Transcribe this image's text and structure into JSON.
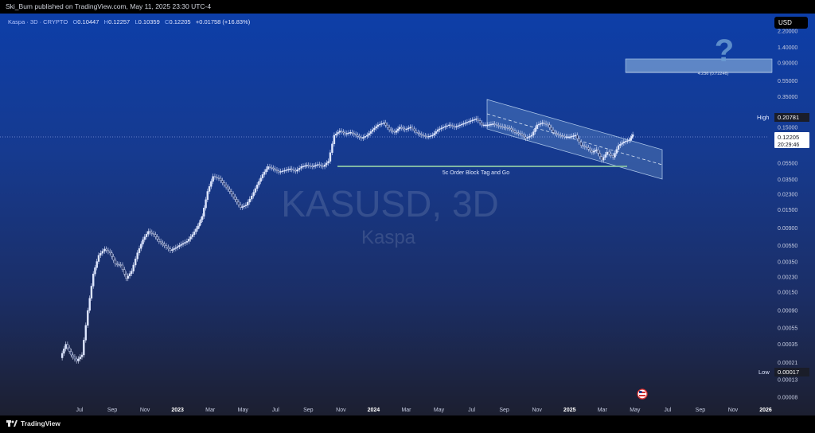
{
  "header": {
    "published_by": "Ski_Bum published on TradingView.com, May 11, 2025 23:30 UTC-4"
  },
  "legend": {
    "symbol": "Kaspa · 3D · CRYPTO",
    "open_key": "O",
    "open": "0.10447",
    "high_key": "H",
    "high": "0.12257",
    "low_key": "L",
    "low": "0.10359",
    "close_key": "C",
    "close": "0.12205",
    "change": "+0.01758 (+16.83%)"
  },
  "currency_button": "USD",
  "watermark": {
    "ticker": "KASUSD, 3D",
    "name": "Kaspa"
  },
  "price_labels": {
    "high_tag": "High",
    "high_value": "0.20781",
    "low_tag": "Low",
    "low_value": "0.00017",
    "current_price": "0.12205",
    "countdown": "20:29:46"
  },
  "annotations": {
    "order_block": "5c Order Block Tag and Go",
    "fib_target": "4.236 (0.72246)",
    "question_mark": "?"
  },
  "footer": {
    "brand": "TradingView"
  },
  "colors": {
    "candle": "#dfe7ff",
    "channel_fill": "#7aa7d8",
    "price_line": "#b8c6ff",
    "label_bg": "#ffffff",
    "bottom_bar": "#000000"
  },
  "chart_data": {
    "type": "candlestick",
    "title": "KASUSD, 3D",
    "y_scale": "log",
    "y_ticks": [
      "2.20000",
      "1.40000",
      "0.90000",
      "0.55000",
      "0.35000",
      "0.20781",
      "0.15000",
      "0.09500",
      "0.05500",
      "0.03500",
      "0.02300",
      "0.01500",
      "0.00900",
      "0.00550",
      "0.00350",
      "0.00230",
      "0.00150",
      "0.00090",
      "0.00055",
      "0.00035",
      "0.00021",
      "0.00017",
      "0.00013",
      "0.00008"
    ],
    "x_ticks": [
      "Jul",
      "Sep",
      "Nov",
      "2023",
      "Mar",
      "May",
      "Jul",
      "Sep",
      "Nov",
      "2024",
      "Mar",
      "May",
      "Jul",
      "Sep",
      "Nov",
      "2025",
      "Mar",
      "May",
      "Jul",
      "Sep",
      "Nov",
      "2026"
    ],
    "bold_x_ticks": [
      "2023",
      "2024",
      "2025",
      "2026"
    ],
    "x_range": [
      "2022-06-15",
      "2026-01-01"
    ],
    "ylim": [
      8e-05,
      2.2
    ],
    "series": [
      {
        "name": "KASUSD",
        "points": [
          [
            "2022-06-15",
            0.00024
          ],
          [
            "2022-06-25",
            0.00035
          ],
          [
            "2022-07-05",
            0.00026
          ],
          [
            "2022-07-15",
            0.00022
          ],
          [
            "2022-07-25",
            0.00026
          ],
          [
            "2022-08-05",
            0.0009
          ],
          [
            "2022-08-15",
            0.0025
          ],
          [
            "2022-08-25",
            0.0042
          ],
          [
            "2022-09-05",
            0.005
          ],
          [
            "2022-09-15",
            0.0045
          ],
          [
            "2022-09-25",
            0.0033
          ],
          [
            "2022-10-05",
            0.0032
          ],
          [
            "2022-10-15",
            0.0022
          ],
          [
            "2022-10-25",
            0.0027
          ],
          [
            "2022-11-05",
            0.0045
          ],
          [
            "2022-11-15",
            0.0065
          ],
          [
            "2022-11-25",
            0.0082
          ],
          [
            "2022-12-05",
            0.0075
          ],
          [
            "2022-12-15",
            0.0062
          ],
          [
            "2022-12-25",
            0.0055
          ],
          [
            "2023-01-05",
            0.0048
          ],
          [
            "2023-01-15",
            0.0052
          ],
          [
            "2023-01-25",
            0.0057
          ],
          [
            "2023-02-05",
            0.0062
          ],
          [
            "2023-02-15",
            0.0075
          ],
          [
            "2023-02-25",
            0.0095
          ],
          [
            "2023-03-05",
            0.0125
          ],
          [
            "2023-03-15",
            0.025
          ],
          [
            "2023-03-25",
            0.038
          ],
          [
            "2023-04-05",
            0.036
          ],
          [
            "2023-04-15",
            0.03
          ],
          [
            "2023-04-25",
            0.025
          ],
          [
            "2023-05-05",
            0.02
          ],
          [
            "2023-05-15",
            0.016
          ],
          [
            "2023-05-25",
            0.017
          ],
          [
            "2023-06-05",
            0.022
          ],
          [
            "2023-06-15",
            0.03
          ],
          [
            "2023-06-25",
            0.04
          ],
          [
            "2023-07-05",
            0.05
          ],
          [
            "2023-07-15",
            0.047
          ],
          [
            "2023-07-25",
            0.043
          ],
          [
            "2023-08-05",
            0.045
          ],
          [
            "2023-08-15",
            0.047
          ],
          [
            "2023-08-25",
            0.044
          ],
          [
            "2023-09-05",
            0.05
          ],
          [
            "2023-09-15",
            0.052
          ],
          [
            "2023-09-25",
            0.05
          ],
          [
            "2023-10-05",
            0.053
          ],
          [
            "2023-10-15",
            0.05
          ],
          [
            "2023-10-25",
            0.058
          ],
          [
            "2023-11-05",
            0.12
          ],
          [
            "2023-11-15",
            0.135
          ],
          [
            "2023-11-25",
            0.125
          ],
          [
            "2023-12-05",
            0.13
          ],
          [
            "2023-12-15",
            0.12
          ],
          [
            "2023-12-25",
            0.11
          ],
          [
            "2024-01-05",
            0.12
          ],
          [
            "2024-01-15",
            0.14
          ],
          [
            "2024-01-25",
            0.16
          ],
          [
            "2024-02-05",
            0.17
          ],
          [
            "2024-02-15",
            0.14
          ],
          [
            "2024-02-25",
            0.13
          ],
          [
            "2024-03-05",
            0.15
          ],
          [
            "2024-03-15",
            0.14
          ],
          [
            "2024-03-25",
            0.15
          ],
          [
            "2024-04-05",
            0.13
          ],
          [
            "2024-04-15",
            0.12
          ],
          [
            "2024-04-25",
            0.115
          ],
          [
            "2024-05-05",
            0.12
          ],
          [
            "2024-05-15",
            0.14
          ],
          [
            "2024-05-25",
            0.15
          ],
          [
            "2024-06-05",
            0.16
          ],
          [
            "2024-06-15",
            0.15
          ],
          [
            "2024-06-25",
            0.16
          ],
          [
            "2024-07-05",
            0.17
          ],
          [
            "2024-07-15",
            0.18
          ],
          [
            "2024-07-25",
            0.19
          ],
          [
            "2024-08-05",
            0.16
          ],
          [
            "2024-08-15",
            0.16
          ],
          [
            "2024-08-25",
            0.165
          ],
          [
            "2024-09-05",
            0.155
          ],
          [
            "2024-09-15",
            0.15
          ],
          [
            "2024-09-25",
            0.145
          ],
          [
            "2024-10-05",
            0.13
          ],
          [
            "2024-10-15",
            0.125
          ],
          [
            "2024-10-25",
            0.11
          ],
          [
            "2024-11-05",
            0.12
          ],
          [
            "2024-11-15",
            0.16
          ],
          [
            "2024-11-25",
            0.17
          ],
          [
            "2024-12-05",
            0.16
          ],
          [
            "2024-12-15",
            0.13
          ],
          [
            "2024-12-25",
            0.12
          ],
          [
            "2025-01-05",
            0.115
          ],
          [
            "2025-01-15",
            0.115
          ],
          [
            "2025-01-25",
            0.12
          ],
          [
            "2025-02-05",
            0.09
          ],
          [
            "2025-02-15",
            0.085
          ],
          [
            "2025-02-25",
            0.075
          ],
          [
            "2025-03-05",
            0.08
          ],
          [
            "2025-03-15",
            0.06
          ],
          [
            "2025-03-25",
            0.075
          ],
          [
            "2025-04-05",
            0.065
          ],
          [
            "2025-04-15",
            0.09
          ],
          [
            "2025-04-25",
            0.1
          ],
          [
            "2025-05-05",
            0.105
          ],
          [
            "2025-05-11",
            0.12205
          ]
        ]
      }
    ],
    "annotations": [
      {
        "text": "5c Order Block Tag and Go",
        "level": 0.05
      },
      {
        "text": "4.236 (0.72246)",
        "level": 0.72246
      }
    ]
  }
}
